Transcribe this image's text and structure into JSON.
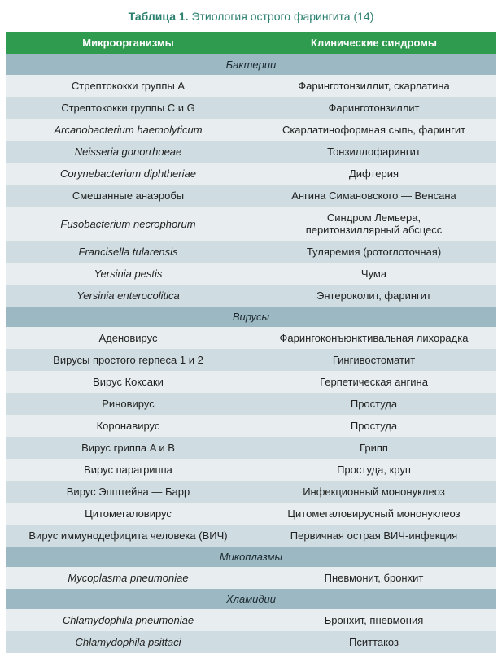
{
  "title_prefix": "Таблица 1.",
  "title_text": "Этиология острого фарингита (14)",
  "columns": [
    "Микроорганизмы",
    "Клинические синдромы"
  ],
  "colors": {
    "header_bg": "#2e9b4f",
    "section_bg": "#9cb8c3",
    "row_light": "#e8eef0",
    "row_dark": "#cfdde2",
    "title_color": "#2a7f6f"
  },
  "sections": [
    {
      "name": "Бактерии",
      "rows": [
        {
          "org": "Стрептококки группы А",
          "syn": "Фаринготонзиллит, скарлатина"
        },
        {
          "org": "Стрептококки группы С и G",
          "syn": "Фаринготонзиллит"
        },
        {
          "org": "Arcanobacterium haemolyticum",
          "org_italic": true,
          "syn": "Скарлатиноформная сыпь, фарингит"
        },
        {
          "org": "Neisseria gonorrhoeae",
          "org_italic": true,
          "syn": "Тонзиллофарингит"
        },
        {
          "org": "Corynebacterium diphtheriae",
          "org_italic": true,
          "syn": "Дифтерия"
        },
        {
          "org": "Смешанные анаэробы",
          "syn": "Ангина Симановского — Венсана"
        },
        {
          "org": "Fusobacterium necrophorum",
          "org_italic": true,
          "syn": "Синдром Лемьера,\nперитонзиллярный абсцесс"
        },
        {
          "org": "Francisella tularensis",
          "org_italic": true,
          "syn": "Туляремия (ротоглоточная)"
        },
        {
          "org": "Yersinia pestis",
          "org_italic": true,
          "syn": "Чума"
        },
        {
          "org": "Yersinia enterocolitica",
          "org_italic": true,
          "syn": "Энтероколит, фарингит"
        }
      ]
    },
    {
      "name": "Вирусы",
      "rows": [
        {
          "org": "Аденовирус",
          "syn": "Фарингоконъюнктивальная лихорадка"
        },
        {
          "org": "Вирусы простого герпеса 1 и 2",
          "syn": "Гингивостоматит"
        },
        {
          "org": "Вирус Коксаки",
          "syn": "Герпетическая ангина"
        },
        {
          "org": "Риновирус",
          "syn": "Простуда"
        },
        {
          "org": "Коронавирус",
          "syn": "Простуда"
        },
        {
          "org": "Вирус гриппа A и B",
          "syn": "Грипп"
        },
        {
          "org": "Вирус парагриппа",
          "syn": "Простуда, круп"
        },
        {
          "org": "Вирус Эпштейна — Барр",
          "syn": "Инфекционный мононуклеоз"
        },
        {
          "org": "Цитомегаловирус",
          "syn": "Цитомегаловирусный мононуклеоз"
        },
        {
          "org": "Вирус иммунодефицита человека (ВИЧ)",
          "syn": "Первичная острая ВИЧ-инфекция"
        }
      ]
    },
    {
      "name": "Микоплазмы",
      "rows": [
        {
          "org": "Mycoplasma pneumoniae",
          "org_italic": true,
          "syn": "Пневмонит, бронхит"
        }
      ]
    },
    {
      "name": "Хламидии",
      "rows": [
        {
          "org": "Chlamydophila pneumoniae",
          "org_italic": true,
          "syn": "Бронхит, пневмония"
        },
        {
          "org": "Chlamydophila psittaci",
          "org_italic": true,
          "syn": "Пситтакоз"
        }
      ]
    }
  ]
}
